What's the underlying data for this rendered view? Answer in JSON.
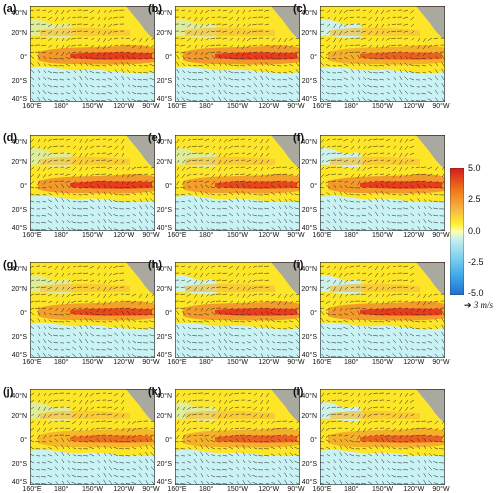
{
  "panels": [
    {
      "label": "(a)"
    },
    {
      "label": "(b)"
    },
    {
      "label": "(c)"
    },
    {
      "label": "(d)"
    },
    {
      "label": "(e)"
    },
    {
      "label": "(f)"
    },
    {
      "label": "(g)"
    },
    {
      "label": "(h)"
    },
    {
      "label": "(i)"
    },
    {
      "label": "(j)"
    },
    {
      "label": "(k)"
    },
    {
      "label": "(l)"
    }
  ],
  "lat_labels": [
    "40°N",
    "20°N",
    "0°",
    "20°S",
    "40°S"
  ],
  "lon_labels": [
    "160°E",
    "180°",
    "150°W",
    "120°W",
    "90°W"
  ],
  "colorbar": {
    "ticks": [
      "5.0",
      "2.5",
      "0.0",
      "-2.5",
      "-5.0"
    ],
    "colors": [
      "#d7191c",
      "#f07a1a",
      "#f5b342",
      "#ffee33",
      "#ffffb0",
      "#c8f0f0",
      "#7fd3ef",
      "#3fa8e8",
      "#1f6fd0"
    ],
    "unit_text": "3 m/s"
  },
  "map_colors": {
    "positive_high": "#e8311c",
    "positive_mid": "#f08c2a",
    "positive_low": "#f6c03c",
    "positive_base": "#fde628",
    "near_zero": "#c9f2f4",
    "land": "#a9a9a0",
    "vector": "#222222"
  }
}
